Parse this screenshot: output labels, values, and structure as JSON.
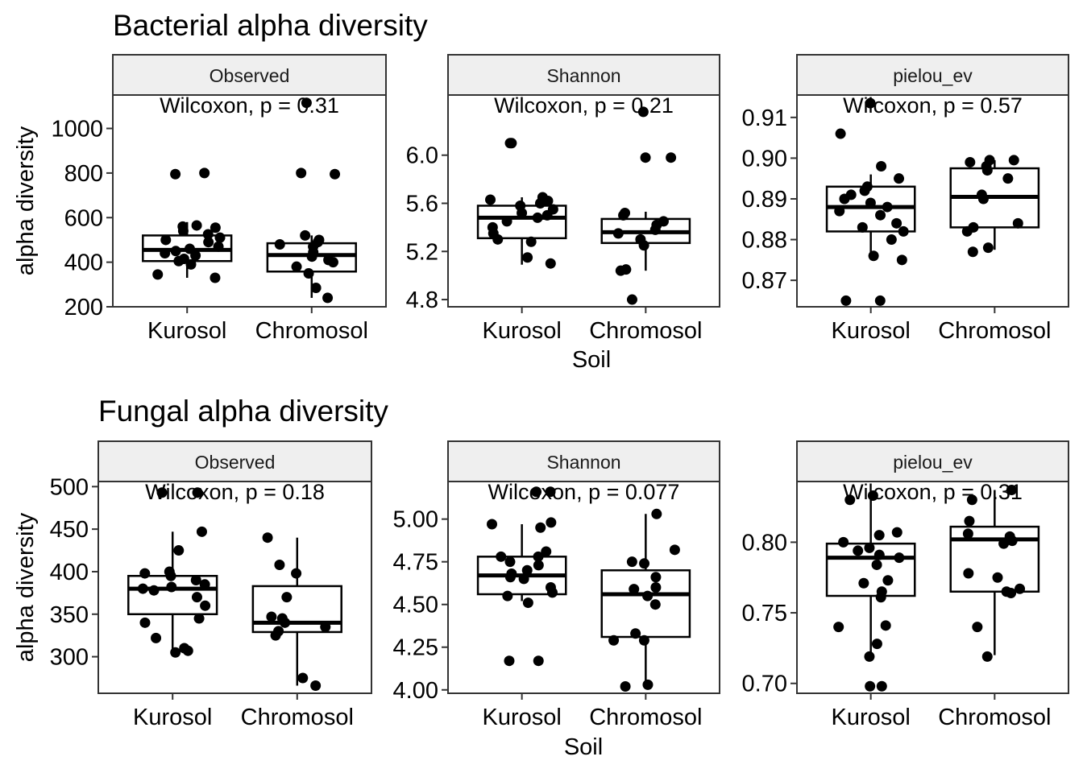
{
  "figure": {
    "axis_titles": {
      "x": "Soil",
      "y": "alpha diversity"
    }
  },
  "chart_data": [
    {
      "type": "box",
      "title": "Bacterial alpha diversity",
      "facets": [
        {
          "strip": "Observed",
          "annotation": "Wilcoxon, p = 0.31",
          "ylim": [
            200,
            1150
          ],
          "yticks": [
            200,
            400,
            600,
            800,
            1000
          ],
          "categories": [
            "Kurosol",
            "Chromosol"
          ],
          "boxes": [
            {
              "q1": 405,
              "median": 455,
              "q3": 520,
              "whisker_low": 330,
              "whisker_high": 580,
              "points": [
                330,
                345,
                390,
                405,
                415,
                430,
                440,
                450,
                460,
                470,
                490,
                500,
                510,
                525,
                540,
                555,
                560,
                565,
                795,
                800
              ]
            },
            {
              "q1": 358,
              "median": 432,
              "q3": 485,
              "whisker_low": 240,
              "whisker_high": 520,
              "points": [
                240,
                285,
                350,
                380,
                400,
                410,
                425,
                445,
                470,
                480,
                490,
                500,
                520,
                795,
                800,
                1115
              ]
            }
          ]
        },
        {
          "strip": "Shannon",
          "annotation": "Wilcoxon, p = 0.21",
          "ylim": [
            4.74,
            6.5
          ],
          "yticks": [
            4.8,
            5.2,
            5.6,
            6.0
          ],
          "categories": [
            "Kurosol",
            "Chromosol"
          ],
          "boxes": [
            {
              "q1": 5.31,
              "median": 5.48,
              "q3": 5.58,
              "whisker_low": 5.09,
              "whisker_high": 5.65,
              "points": [
                5.1,
                5.15,
                5.28,
                5.3,
                5.35,
                5.4,
                5.45,
                5.48,
                5.5,
                5.52,
                5.55,
                5.58,
                5.6,
                5.62,
                5.63,
                5.65,
                6.1,
                6.1
              ]
            },
            {
              "q1": 5.27,
              "median": 5.36,
              "q3": 5.47,
              "whisker_low": 5.04,
              "whisker_high": 5.53,
              "points": [
                4.8,
                5.04,
                5.05,
                5.25,
                5.3,
                5.35,
                5.38,
                5.42,
                5.45,
                5.5,
                5.52,
                5.98,
                5.98,
                6.36
              ]
            }
          ]
        },
        {
          "strip": "pielou_ev",
          "annotation": "Wilcoxon, p = 0.57",
          "ylim": [
            0.8635,
            0.9155
          ],
          "yticks": [
            0.87,
            0.88,
            0.89,
            0.9,
            0.91
          ],
          "categories": [
            "Kurosol",
            "Chromosol"
          ],
          "boxes": [
            {
              "q1": 0.882,
              "median": 0.888,
              "q3": 0.893,
              "whisker_low": 0.8755,
              "whisker_high": 0.896,
              "points": [
                0.865,
                0.865,
                0.875,
                0.876,
                0.88,
                0.882,
                0.883,
                0.884,
                0.886,
                0.887,
                0.888,
                0.889,
                0.89,
                0.891,
                0.892,
                0.893,
                0.895,
                0.898,
                0.906,
                0.9135
              ]
            },
            {
              "q1": 0.883,
              "median": 0.8905,
              "q3": 0.8975,
              "whisker_low": 0.8775,
              "whisker_high": 0.8995,
              "points": [
                0.877,
                0.878,
                0.882,
                0.883,
                0.884,
                0.89,
                0.891,
                0.895,
                0.897,
                0.898,
                0.899,
                0.8995,
                0.8995
              ]
            }
          ]
        }
      ]
    },
    {
      "type": "box",
      "title": "Fungal alpha diversity",
      "facets": [
        {
          "strip": "Observed",
          "annotation": "Wilcoxon, p = 0.18",
          "ylim": [
            257,
            506
          ],
          "yticks": [
            300,
            350,
            400,
            450,
            500
          ],
          "categories": [
            "Kurosol",
            "Chromosol"
          ],
          "boxes": [
            {
              "q1": 350,
              "median": 380,
              "q3": 395,
              "whisker_low": 305,
              "whisker_high": 447,
              "points": [
                305,
                307,
                310,
                322,
                340,
                345,
                360,
                370,
                378,
                380,
                382,
                385,
                390,
                395,
                398,
                400,
                425,
                447,
                493,
                493
              ]
            },
            {
              "q1": 329,
              "median": 340,
              "q3": 383,
              "whisker_low": 266,
              "whisker_high": 440,
              "points": [
                266,
                275,
                325,
                330,
                335,
                340,
                345,
                347,
                370,
                398,
                408,
                440
              ]
            }
          ]
        },
        {
          "strip": "Shannon",
          "annotation": "Wilcoxon, p = 0.077",
          "ylim": [
            3.98,
            5.22
          ],
          "yticks": [
            4.0,
            4.25,
            4.5,
            4.75,
            5.0
          ],
          "categories": [
            "Kurosol",
            "Chromosol"
          ],
          "boxes": [
            {
              "q1": 4.56,
              "median": 4.67,
              "q3": 4.78,
              "whisker_low": 4.52,
              "whisker_high": 4.97,
              "points": [
                4.17,
                4.17,
                4.51,
                4.55,
                4.57,
                4.6,
                4.65,
                4.66,
                4.68,
                4.7,
                4.73,
                4.75,
                4.78,
                4.78,
                4.81,
                4.95,
                4.97,
                4.98,
                5.16,
                5.16
              ]
            },
            {
              "q1": 4.31,
              "median": 4.56,
              "q3": 4.7,
              "whisker_low": 4.02,
              "whisker_high": 5.03,
              "points": [
                4.02,
                4.03,
                4.29,
                4.29,
                4.33,
                4.5,
                4.55,
                4.59,
                4.6,
                4.66,
                4.74,
                4.75,
                4.82,
                5.03
              ]
            }
          ]
        },
        {
          "strip": "pielou_ev",
          "annotation": "Wilcoxon, p = 0.31",
          "ylim": [
            0.693,
            0.843
          ],
          "yticks": [
            0.7,
            0.75,
            0.8
          ],
          "categories": [
            "Kurosol",
            "Chromosol"
          ],
          "boxes": [
            {
              "q1": 0.762,
              "median": 0.789,
              "q3": 0.799,
              "whisker_low": 0.72,
              "whisker_high": 0.83,
              "points": [
                0.698,
                0.698,
                0.719,
                0.728,
                0.74,
                0.741,
                0.761,
                0.765,
                0.771,
                0.773,
                0.784,
                0.789,
                0.791,
                0.794,
                0.796,
                0.8,
                0.805,
                0.807,
                0.83,
                0.833
              ]
            },
            {
              "q1": 0.765,
              "median": 0.802,
              "q3": 0.811,
              "whisker_low": 0.72,
              "whisker_high": 0.837,
              "points": [
                0.719,
                0.74,
                0.764,
                0.765,
                0.767,
                0.775,
                0.778,
                0.799,
                0.801,
                0.804,
                0.806,
                0.815,
                0.83,
                0.837
              ]
            }
          ]
        }
      ]
    }
  ]
}
